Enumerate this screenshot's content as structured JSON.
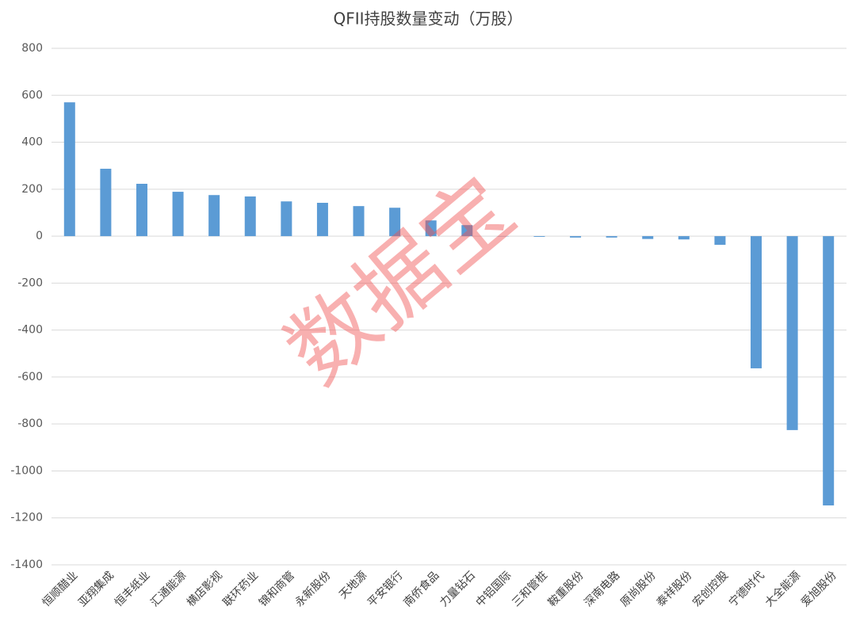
{
  "chart_data": {
    "type": "bar",
    "title": "QFII持股数量变动（万股）",
    "categories": [
      "恒顺醋业",
      "亚翔集成",
      "恒丰纸业",
      "汇通能源",
      "横店影视",
      "联环药业",
      "锦和商管",
      "永新股份",
      "天地源",
      "平安银行",
      "南侨食品",
      "力量钻石",
      "中铝国际",
      "三和管桩",
      "鞍重股份",
      "深南电路",
      "原尚股份",
      "泰祥股份",
      "宏创控股",
      "宁德时代",
      "大全能源",
      "爱旭股份"
    ],
    "values": [
      570,
      287,
      223,
      189,
      175,
      169,
      148,
      142,
      128,
      121,
      67,
      47,
      -1,
      -3,
      -6,
      -6,
      -12,
      -14,
      -37,
      -563,
      -826,
      -1147
    ],
    "color": "#5b9bd5",
    "ylim": [
      -1400,
      800
    ],
    "yticks": [
      -1400,
      -1200,
      -1000,
      -800,
      -600,
      -400,
      -200,
      0,
      200,
      400,
      600,
      800
    ],
    "grid": true,
    "watermark": "数据宝"
  }
}
